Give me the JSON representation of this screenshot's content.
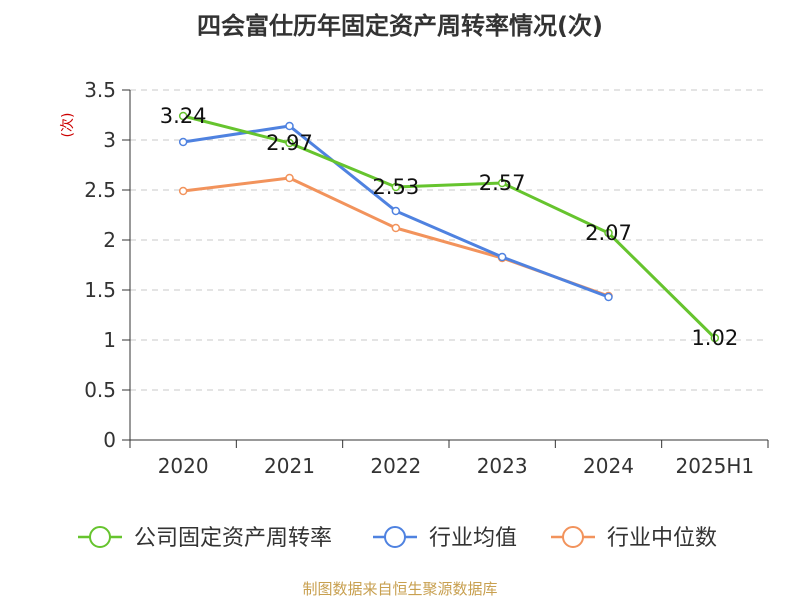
{
  "title": "四会富仕历年固定资产周转率情况(次)",
  "source": "制图数据来自恒生聚源数据库",
  "chart_data": {
    "type": "line",
    "title": "四会富仕历年固定资产周转率情况(次)",
    "ylabel": "(次)",
    "xlabel": "",
    "categories": [
      "2020",
      "2021",
      "2022",
      "2023",
      "2024",
      "2025H1"
    ],
    "ylim": [
      0,
      3.5
    ],
    "yticks": [
      0,
      0.5,
      1,
      1.5,
      2,
      2.5,
      3,
      3.5
    ],
    "ytick_labels": [
      "0",
      "0.5",
      "1",
      "1.5",
      "2",
      "2.5",
      "3",
      "3.5"
    ],
    "grid": true,
    "legend_position": "bottom",
    "series": [
      {
        "name": "公司固定资产周转率",
        "color": "#66c42e",
        "values": [
          3.24,
          2.97,
          2.53,
          2.57,
          2.07,
          1.02
        ],
        "labels": [
          "3.24",
          "2.97",
          "2.53",
          "2.57",
          "2.07",
          "1.02"
        ]
      },
      {
        "name": "行业均值",
        "color": "#4f82e0",
        "values": [
          2.98,
          3.14,
          2.29,
          1.83,
          1.43,
          null
        ]
      },
      {
        "name": "行业中位数",
        "color": "#f2935c",
        "values": [
          2.49,
          2.62,
          2.12,
          1.82,
          1.44,
          null
        ]
      }
    ]
  }
}
